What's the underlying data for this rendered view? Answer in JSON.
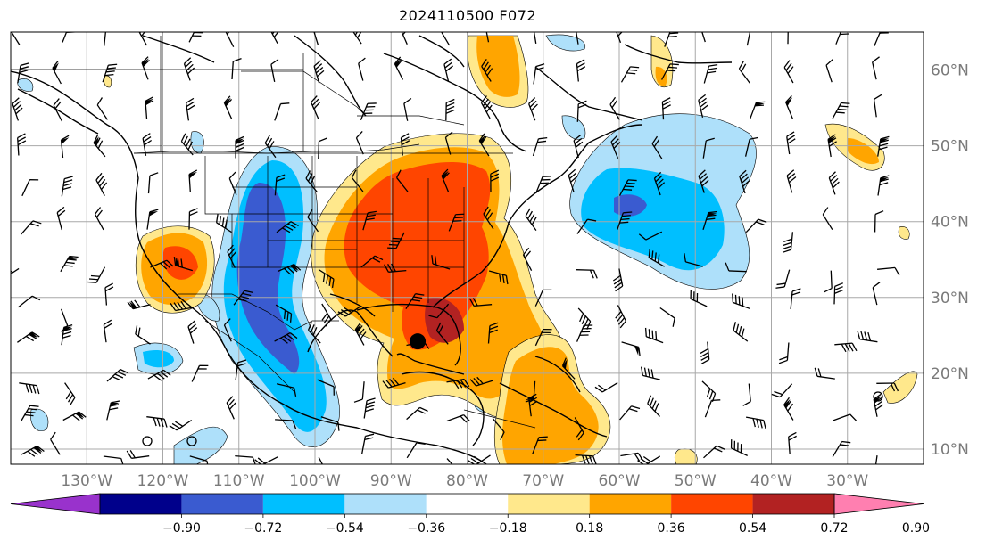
{
  "title": "2024110500 F072",
  "map": {
    "lon_labels": [
      "130°W",
      "120°W",
      "110°W",
      "100°W",
      "90°W",
      "80°W",
      "70°W",
      "60°W",
      "50°W",
      "40°W",
      "30°W"
    ],
    "lon_values": [
      -130,
      -120,
      -110,
      -100,
      -90,
      -80,
      -70,
      -60,
      -50,
      -40,
      -30
    ],
    "lat_labels": [
      "60°N",
      "50°N",
      "40°N",
      "30°N",
      "20°N",
      "10°N"
    ],
    "lat_values": [
      60,
      50,
      40,
      30,
      20,
      10
    ],
    "extent": {
      "lon_min": -140,
      "lon_max": -20,
      "lat_min": 8,
      "lat_max": 65
    },
    "marker_lon": -86.5,
    "marker_lat": 24.2
  },
  "colorbar": {
    "ticks": [
      "−0.90",
      "−0.72",
      "−0.54",
      "−0.36",
      "−0.18",
      "0.18",
      "0.36",
      "0.54",
      "0.72",
      "0.90"
    ],
    "colors": [
      "#9932cc",
      "#00008b",
      "#3a5bd0",
      "#00bfff",
      "#aee0fa",
      "#ffffff",
      "#ffe88c",
      "#ffa500",
      "#ff4500",
      "#b22222",
      "#ff7fb0"
    ]
  }
}
